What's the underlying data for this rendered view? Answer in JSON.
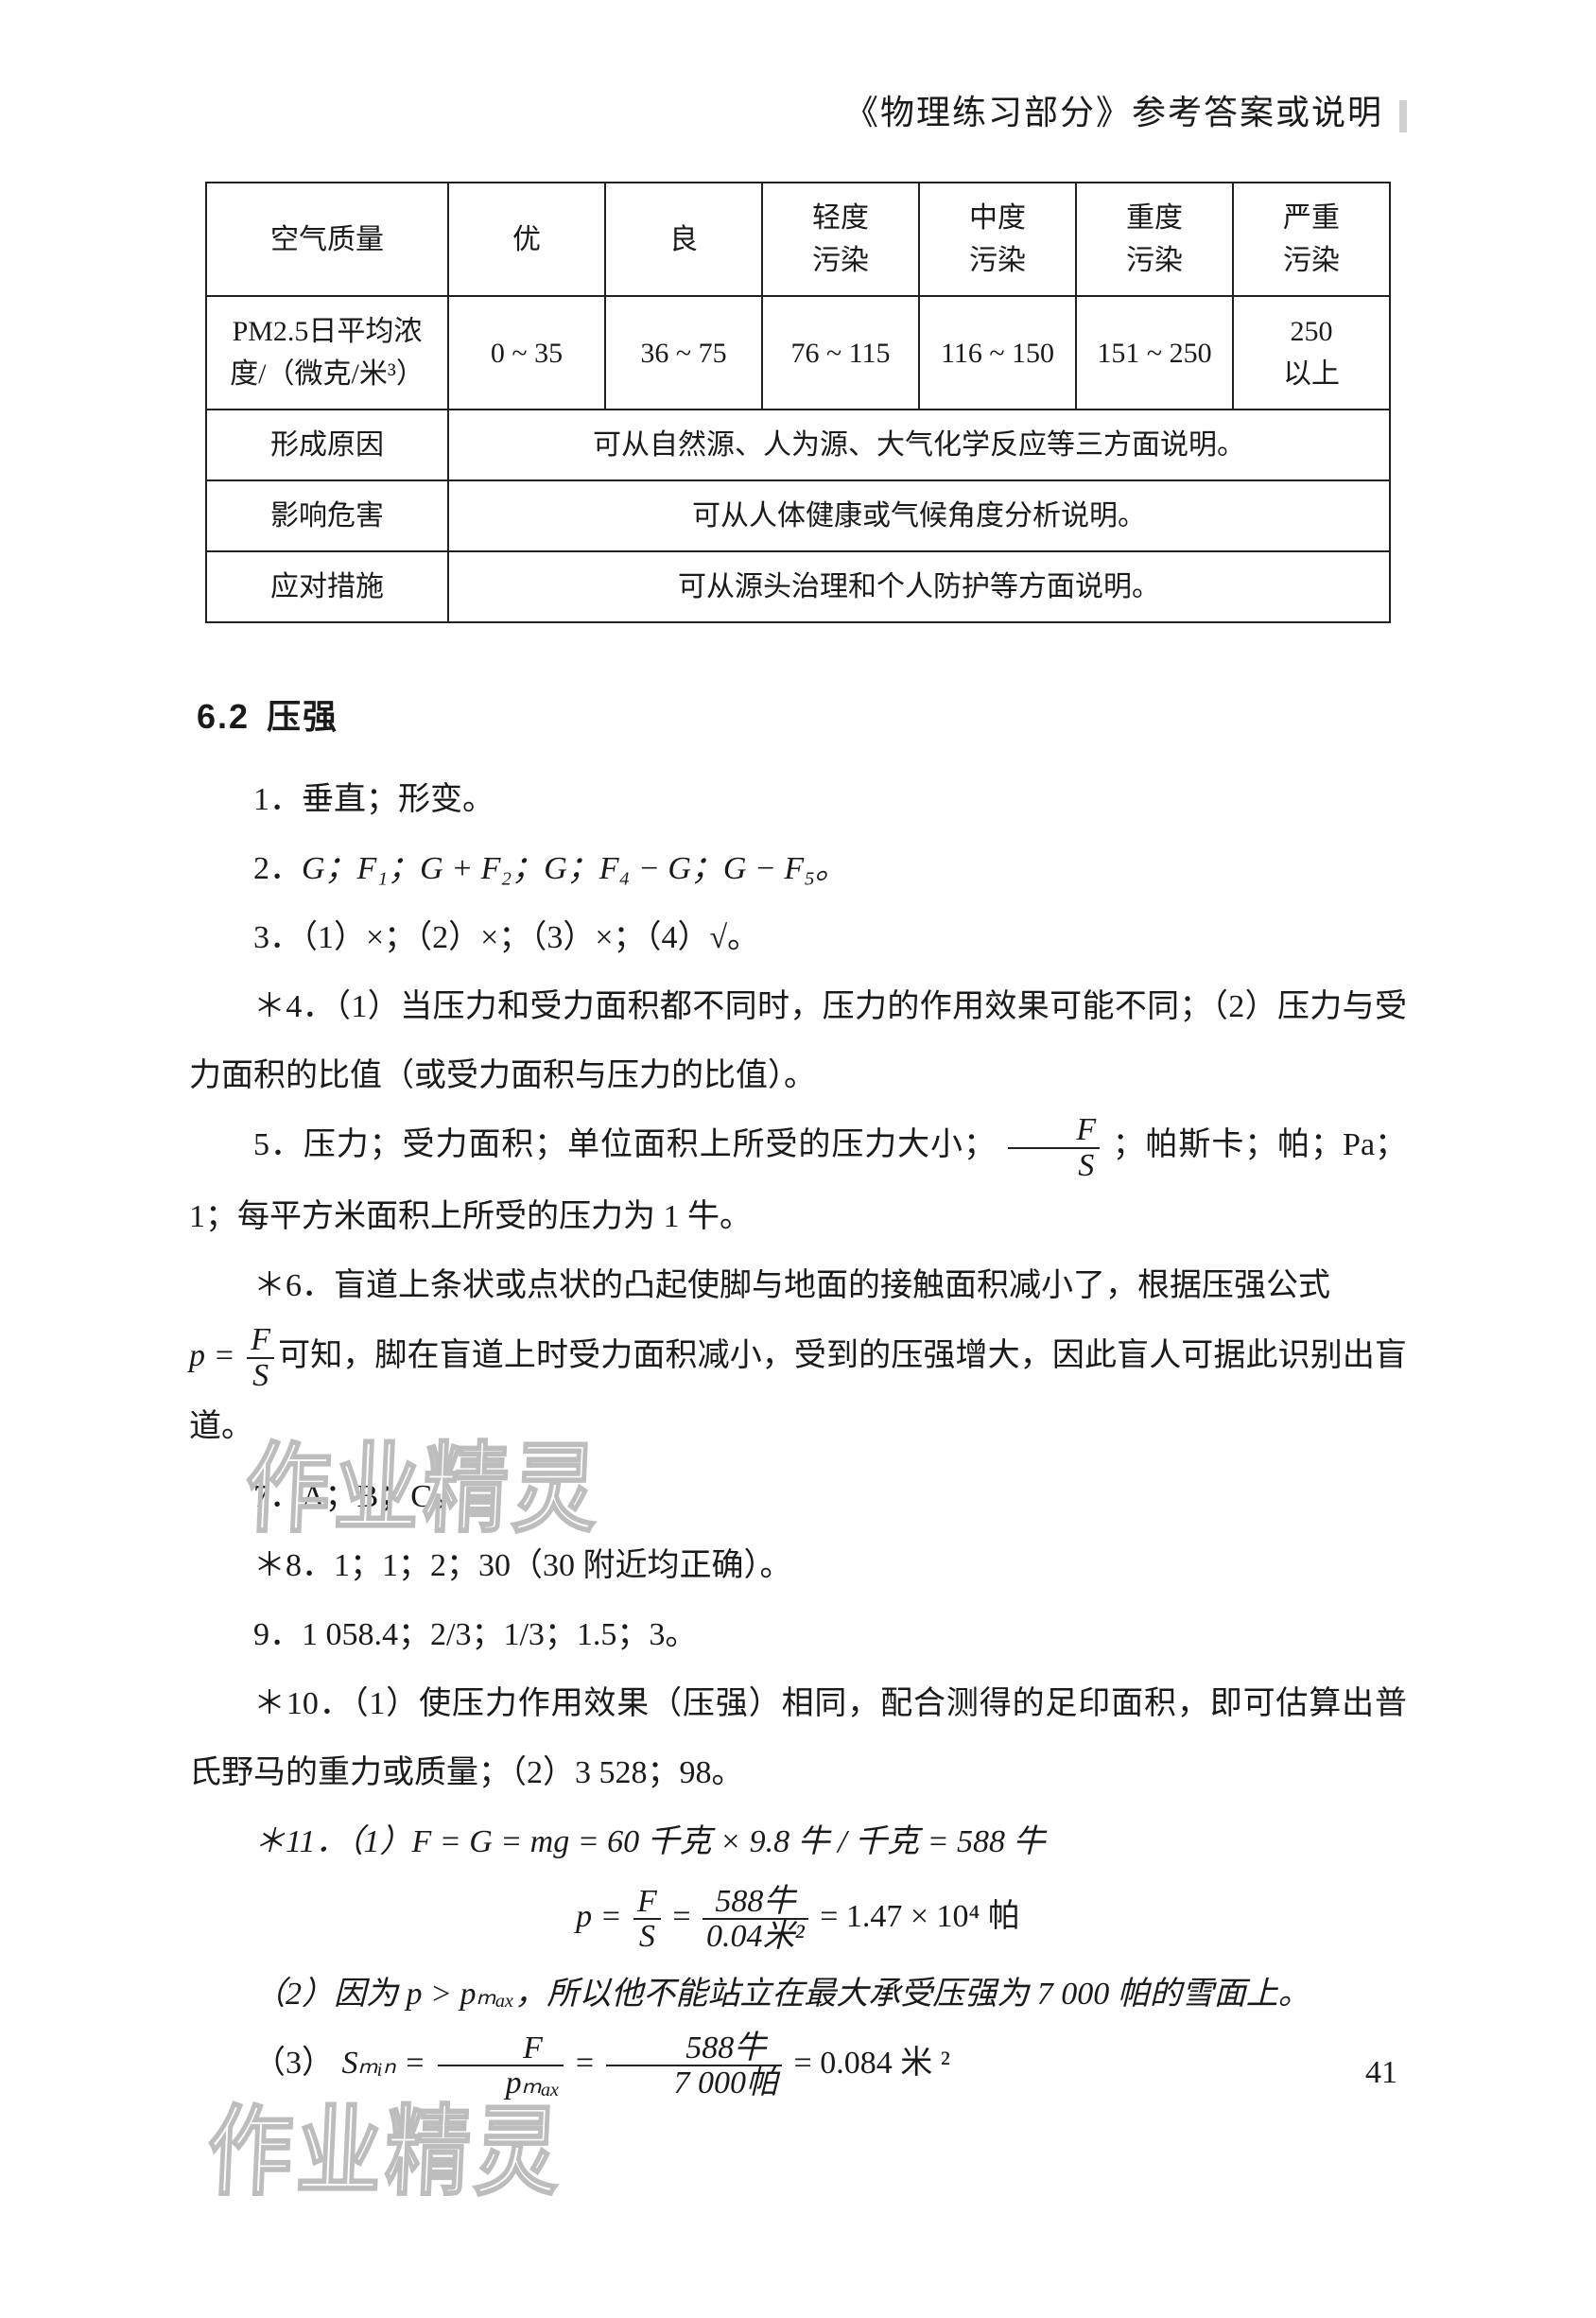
{
  "header": {
    "title": "《物理练习部分》参考答案或说明"
  },
  "air_table": {
    "row_labels": {
      "quality": "空气质量",
      "pm25_line1": "PM2.5日平均浓",
      "pm25_line2": "度/（微克/米³）",
      "cause": "形成原因",
      "harm": "影响危害",
      "measure": "应对措施"
    },
    "quality_levels": [
      "优",
      "良",
      "轻度\n污染",
      "中度\n污染",
      "重度\n污染",
      "严重\n污染"
    ],
    "pm25_ranges": [
      "0 ~ 35",
      "36 ~ 75",
      "76 ~ 115",
      "116 ~ 150",
      "151 ~ 250",
      "250\n以上"
    ],
    "cause_text": "可从自然源、人为源、大气化学反应等三方面说明。",
    "harm_text": "可从人体健康或气候角度分析说明。",
    "measure_text": "可从源头治理和个人防护等方面说明。"
  },
  "section": {
    "num": "6.2",
    "title": "压强"
  },
  "answers": {
    "a1": "1．垂直；形变。",
    "a2_pre": "2．",
    "a2_text": "G；F₁；G + F₂；G；F₄ − G；G − F₅。",
    "a3": "3．（1）×；（2）×；（3）×；（4）√。",
    "a4": "＊4．（1）当压力和受力面积都不同时，压力的作用效果可能不同；（2）压力与受力面积的比值（或受力面积与压力的比值）。",
    "a5_pre": "5．压力；受力面积；单位面积上所受的压力大小；",
    "a5_frac_num": "F",
    "a5_frac_den": "S",
    "a5_post": "；帕斯卡；帕；Pa；1；每平方米面积上所受的压力为 1 牛。",
    "a6_pre": "＊6．盲道上条状或点状的凸起使脚与地面的接触面积减小了，根据压强公式",
    "a6_eq_lhs": "p = ",
    "a6_frac_num": "F",
    "a6_frac_den": "S",
    "a6_post": "可知，脚在盲道上时受力面积减小，受到的压强增大，因此盲人可据此识别出盲道。",
    "a7": "7．A；B；C。",
    "a8": "＊8．1；1；2；30（30 附近均正确）。",
    "a9": "9．1 058.4；2/3；1/3；1.5；3。",
    "a10": "＊10．（1）使压力作用效果（压强）相同，配合测得的足印面积，即可估算出普氏野马的重力或质量；（2）3 528；98。",
    "a11_line1": "＊11．（1）F = G = mg = 60 千克 × 9.8 牛 / 千克 = 588 牛",
    "a11_eq_lhs": "p = ",
    "a11_eq_num1": "F",
    "a11_eq_den1": "S",
    "a11_eq_mid": " = ",
    "a11_eq_num2": "588牛",
    "a11_eq_den2": "0.04米²",
    "a11_eq_rhs": " = 1.47 × 10⁴ 帕",
    "a11_line2": "（2）因为 p > pₘₐₓ，所以他不能站立在最大承受压强为 7 000 帕的雪面上。",
    "a11_3_pre": "（3）",
    "a11_3_lhs": "Sₘᵢₙ = ",
    "a11_3_num1": "F",
    "a11_3_den1": "pₘₐₓ",
    "a11_3_num2": "588牛",
    "a11_3_den2": "7 000帕",
    "a11_3_rhs": " = 0.084 米 ²"
  },
  "page_number": "41",
  "watermark_text": "作业精灵"
}
